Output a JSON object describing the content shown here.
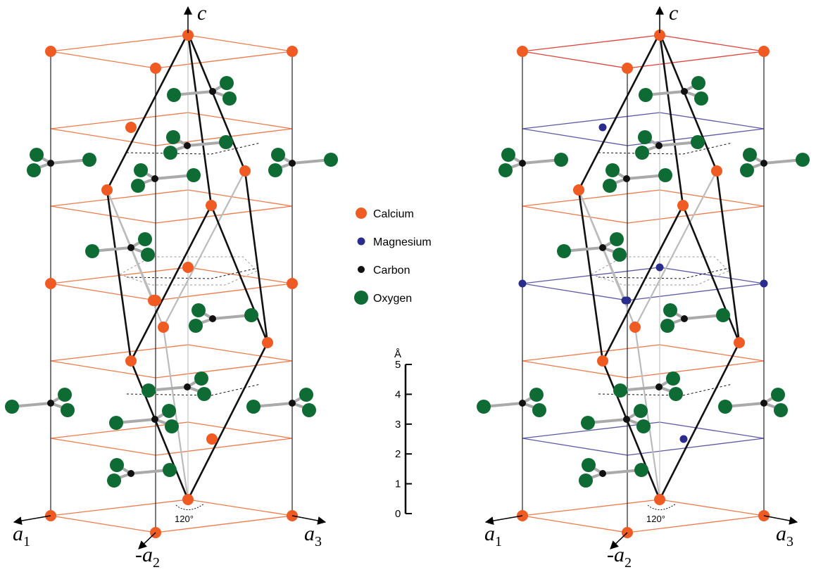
{
  "structures": [
    {
      "axes": {
        "c": "c",
        "a1": {
          "symbol": "a",
          "subscript": "1"
        },
        "a2": {
          "symbol": "-a",
          "subscript": "2"
        },
        "a3": {
          "symbol": "a",
          "subscript": "3"
        }
      },
      "angle": "120°"
    },
    {
      "axes": {
        "c": "c",
        "a1": {
          "symbol": "a",
          "subscript": "1"
        },
        "a2": {
          "symbol": "-a",
          "subscript": "2"
        },
        "a3": {
          "symbol": "a",
          "subscript": "3"
        }
      },
      "angle": "120°"
    }
  ],
  "legend": [
    {
      "label": "Calcium"
    },
    {
      "label": "Magnesium"
    },
    {
      "label": "Carbon"
    },
    {
      "label": "Oxygen"
    }
  ],
  "scale_bar": {
    "unit": "Å",
    "ticks": [
      0,
      1,
      2,
      3,
      4,
      5
    ]
  }
}
